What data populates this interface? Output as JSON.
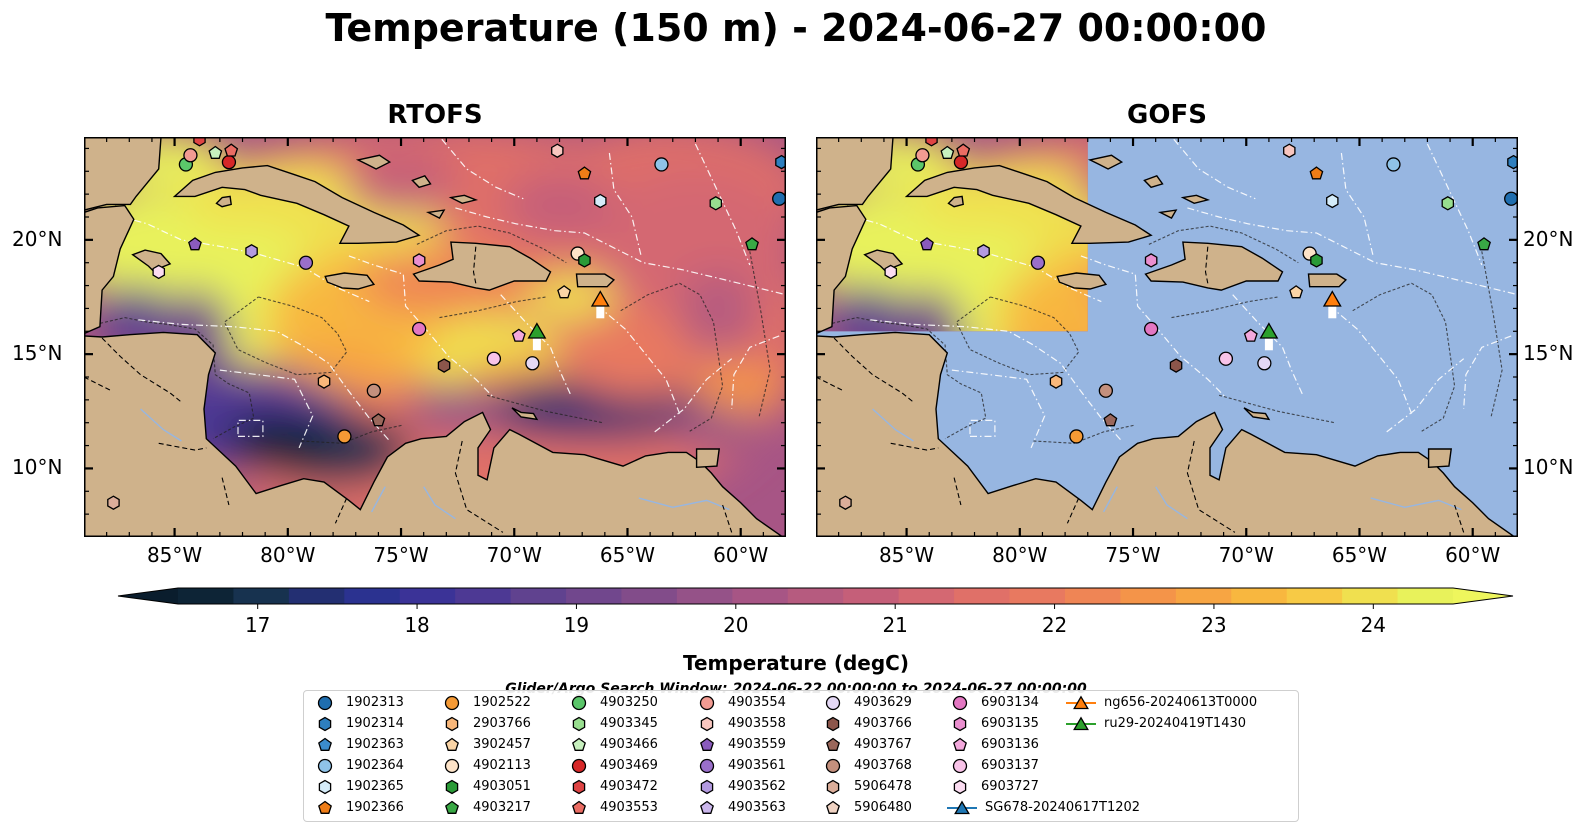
{
  "title": "Temperature (150 m) - 2024-06-27 00:00:00",
  "panels": [
    {
      "title": "RTOFS",
      "model_extent_deg": null
    },
    {
      "title": "GOFS",
      "model_extent_deg": {
        "lon": [
          -89,
          -77
        ],
        "lat": [
          16,
          24.5
        ]
      }
    }
  ],
  "map_extent_deg": {
    "lon": [
      -89,
      -58
    ],
    "lat": [
      7,
      24.5
    ]
  },
  "lon_ticks": [
    {
      "value": -85,
      "label": "85°W"
    },
    {
      "value": -80,
      "label": "80°W"
    },
    {
      "value": -75,
      "label": "75°W"
    },
    {
      "value": -70,
      "label": "70°W"
    },
    {
      "value": -65,
      "label": "65°W"
    },
    {
      "value": -60,
      "label": "60°W"
    }
  ],
  "lat_ticks": [
    {
      "value": 20,
      "label": "20°N"
    },
    {
      "value": 15,
      "label": "15°N"
    },
    {
      "value": 10,
      "label": "10°N"
    }
  ],
  "colors": {
    "ocean": "#97b6e1",
    "land": "#cfb28b",
    "no_data": "#97b6e1"
  },
  "colorbar": {
    "label": "Temperature (degC)",
    "min": 16.5,
    "max": 24.5,
    "ticks": [
      17,
      18,
      19,
      20,
      21,
      22,
      23,
      24
    ],
    "colors": [
      "#0d2436",
      "#17324f",
      "#232f72",
      "#2b3290",
      "#3b3397",
      "#4d3994",
      "#60428f",
      "#71478d",
      "#824c8a",
      "#955288",
      "#a75585",
      "#b65b7f",
      "#c55f79",
      "#d46872",
      "#e07068",
      "#e87960",
      "#ef8555",
      "#f49449",
      "#f7a543",
      "#f8b73f",
      "#f7ca45",
      "#f0e04f",
      "#e8f25b"
    ],
    "extend": "both",
    "under_color": "#0a1d2d",
    "over_color": "#eef65d"
  },
  "search_window": "Glider/Argo Search Window: 2024-06-22 00:00:00 to 2024-06-27 00:00:00",
  "legend": [
    {
      "label": "1902313",
      "marker": "circle",
      "color": "#1f6eaf"
    },
    {
      "label": "1902314",
      "marker": "hexagon",
      "color": "#2e7fbf"
    },
    {
      "label": "1902363",
      "marker": "pentagon",
      "color": "#3b8ccd"
    },
    {
      "label": "1902364",
      "marker": "circle",
      "color": "#8fc3e8"
    },
    {
      "label": "1902365",
      "marker": "hexagon",
      "color": "#d5ecf9"
    },
    {
      "label": "1902366",
      "marker": "pentagon",
      "color": "#ef7d17"
    },
    {
      "label": "1902522",
      "marker": "circle",
      "color": "#f59a35"
    },
    {
      "label": "2903766",
      "marker": "hexagon",
      "color": "#f8b77a"
    },
    {
      "label": "3902457",
      "marker": "pentagon",
      "color": "#fad4a6"
    },
    {
      "label": "4902113",
      "marker": "circle",
      "color": "#fde3c8"
    },
    {
      "label": "4903051",
      "marker": "hexagon",
      "color": "#2a9a37"
    },
    {
      "label": "4903217",
      "marker": "pentagon",
      "color": "#39a845"
    },
    {
      "label": "4903250",
      "marker": "circle",
      "color": "#5bc66a"
    },
    {
      "label": "4903345",
      "marker": "hexagon",
      "color": "#98de8f"
    },
    {
      "label": "4903466",
      "marker": "pentagon",
      "color": "#c7f0be"
    },
    {
      "label": "4903469",
      "marker": "circle",
      "color": "#d62728"
    },
    {
      "label": "4903472",
      "marker": "hexagon",
      "color": "#de4444"
    },
    {
      "label": "4903553",
      "marker": "pentagon",
      "color": "#ea6c63"
    },
    {
      "label": "4903554",
      "marker": "circle",
      "color": "#f29b92"
    },
    {
      "label": "4903558",
      "marker": "hexagon",
      "color": "#f8c6bf"
    },
    {
      "label": "4903559",
      "marker": "pentagon",
      "color": "#8a5bbd"
    },
    {
      "label": "4903561",
      "marker": "circle",
      "color": "#9a6fca"
    },
    {
      "label": "4903562",
      "marker": "hexagon",
      "color": "#b39ae0"
    },
    {
      "label": "4903563",
      "marker": "pentagon",
      "color": "#cbb7ec"
    },
    {
      "label": "4903629",
      "marker": "circle",
      "color": "#e4d8f5"
    },
    {
      "label": "4903766",
      "marker": "hexagon",
      "color": "#8c564b"
    },
    {
      "label": "4903767",
      "marker": "pentagon",
      "color": "#9a675b"
    },
    {
      "label": "4903768",
      "marker": "circle",
      "color": "#c4907d"
    },
    {
      "label": "5906478",
      "marker": "hexagon",
      "color": "#dcae9a"
    },
    {
      "label": "5906480",
      "marker": "pentagon",
      "color": "#f0d3c3"
    },
    {
      "label": "6903134",
      "marker": "circle",
      "color": "#e377c2"
    },
    {
      "label": "6903135",
      "marker": "hexagon",
      "color": "#ea8fcf"
    },
    {
      "label": "6903136",
      "marker": "pentagon",
      "color": "#f3a8dc"
    },
    {
      "label": "6903137",
      "marker": "circle",
      "color": "#f8c3e8"
    },
    {
      "label": "6903727",
      "marker": "hexagon",
      "color": "#fbdcf1"
    },
    {
      "label": "SG678-20240617T1202",
      "marker": "triangle-line",
      "color": "#1f77b4"
    },
    {
      "label": "ng656-20240613T0000",
      "marker": "triangle-line",
      "color": "#ff7f0e"
    },
    {
      "label": "ru29-20240419T1430",
      "marker": "triangle-line",
      "color": "#2ca02c"
    }
  ],
  "floats": [
    {
      "id": "1902313",
      "lon": -58.3,
      "lat": 21.8
    },
    {
      "id": "1902314",
      "lon": -58.2,
      "lat": 23.4
    },
    {
      "id": "1902364",
      "lon": -63.5,
      "lat": 23.3
    },
    {
      "id": "1902365",
      "lon": -66.2,
      "lat": 21.7
    },
    {
      "id": "1902366",
      "lon": -66.9,
      "lat": 22.9
    },
    {
      "id": "1902522",
      "lon": -77.5,
      "lat": 11.4
    },
    {
      "id": "2903766",
      "lon": -78.4,
      "lat": 13.8
    },
    {
      "id": "3902457",
      "lon": -67.8,
      "lat": 17.7
    },
    {
      "id": "4902113",
      "lon": -67.2,
      "lat": 19.4
    },
    {
      "id": "4903051",
      "lon": -66.9,
      "lat": 19.1
    },
    {
      "id": "4903217",
      "lon": -59.5,
      "lat": 19.8
    },
    {
      "id": "4903250",
      "lon": -84.5,
      "lat": 23.3
    },
    {
      "id": "4903345",
      "lon": -61.1,
      "lat": 21.6
    },
    {
      "id": "4903466",
      "lon": -83.2,
      "lat": 23.8
    },
    {
      "id": "4903469",
      "lon": -82.6,
      "lat": 23.4
    },
    {
      "id": "4903472",
      "lon": -83.9,
      "lat": 24.4
    },
    {
      "id": "4903553",
      "lon": -82.5,
      "lat": 23.9
    },
    {
      "id": "4903554",
      "lon": -84.3,
      "lat": 23.7
    },
    {
      "id": "4903558",
      "lon": -68.1,
      "lat": 23.9
    },
    {
      "id": "4903559",
      "lon": -84.1,
      "lat": 19.8
    },
    {
      "id": "4903561",
      "lon": -79.2,
      "lat": 19.0
    },
    {
      "id": "4903562",
      "lon": -81.6,
      "lat": 19.5
    },
    {
      "id": "4903766",
      "lon": -73.1,
      "lat": 14.5
    },
    {
      "id": "4903767",
      "lon": -76.0,
      "lat": 12.1
    },
    {
      "id": "4903768",
      "lon": -76.2,
      "lat": 13.4
    },
    {
      "id": "5906478",
      "lon": -87.7,
      "lat": 8.5
    },
    {
      "id": "6903134",
      "lon": -74.2,
      "lat": 16.1
    },
    {
      "id": "6903135",
      "lon": -74.2,
      "lat": 19.1
    },
    {
      "id": "6903136",
      "lon": -69.8,
      "lat": 15.8
    },
    {
      "id": "6903137",
      "lon": -70.9,
      "lat": 14.8
    },
    {
      "id": "6903727",
      "lon": -85.7,
      "lat": 18.6
    },
    {
      "id": "4903629",
      "lon": -69.2,
      "lat": 14.6
    }
  ],
  "gliders": [
    {
      "id": "ru29-20240419T1430",
      "lon": -69.0,
      "lat": 16.0
    },
    {
      "id": "ng656-20240613T0000",
      "lon": -66.2,
      "lat": 17.4
    }
  ]
}
